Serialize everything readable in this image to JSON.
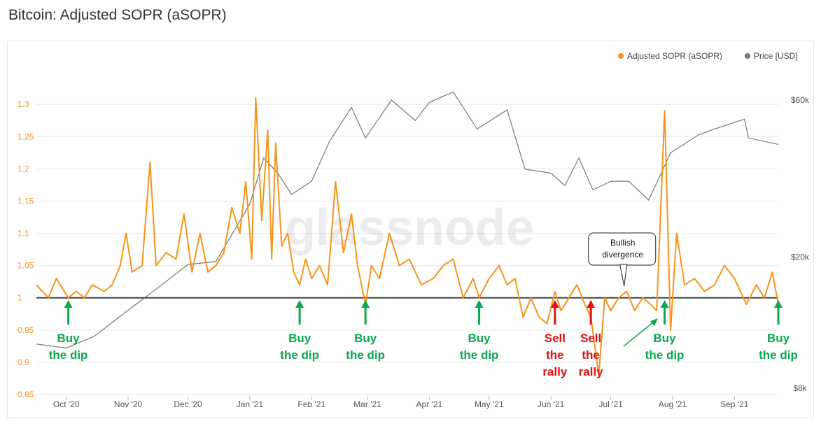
{
  "page_title": "Bitcoin: Adjusted SOPR (aSOPR)",
  "watermark": "glassnode",
  "colors": {
    "sopr": "#f7931a",
    "price": "#777777",
    "baseline": "#444444",
    "buy": "#0aa84f",
    "sell": "#e01010"
  },
  "chart_data": {
    "type": "line",
    "title": "Bitcoin: Adjusted SOPR (aSOPR)",
    "x_ticks": [
      "Oct '20",
      "Nov '20",
      "Dec '20",
      "Jan '21",
      "Feb '21",
      "Mar '21",
      "Apr '21",
      "May '21",
      "Jun '21",
      "Jul '21",
      "Aug '21",
      "Sep '21"
    ],
    "x_range": [
      "2020-09-16",
      "2021-09-23"
    ],
    "y_left": {
      "ticks": [
        "1.3",
        "1.25",
        "1.2",
        "1.15",
        "1.1",
        "1.05",
        "1",
        "0.95",
        "0.9",
        "0.85"
      ],
      "range": [
        0.85,
        1.31
      ]
    },
    "y_right": {
      "ticks": [
        "$60k",
        "$20k",
        "$8k"
      ],
      "scale": "log",
      "range": [
        8000,
        60000
      ]
    },
    "legend": {
      "position": "top-right"
    },
    "baseline": 1,
    "series": [
      {
        "name": "Adjusted SOPR (aSOPR)",
        "axis": "left",
        "points": [
          [
            "2020-09-16",
            1.02
          ],
          [
            "2020-09-22",
            1.0
          ],
          [
            "2020-09-26",
            1.03
          ],
          [
            "2020-10-02",
            1.0
          ],
          [
            "2020-10-06",
            1.01
          ],
          [
            "2020-10-10",
            1.0
          ],
          [
            "2020-10-14",
            1.02
          ],
          [
            "2020-10-20",
            1.01
          ],
          [
            "2020-10-24",
            1.02
          ],
          [
            "2020-10-28",
            1.05
          ],
          [
            "2020-10-31",
            1.1
          ],
          [
            "2020-11-03",
            1.04
          ],
          [
            "2020-11-08",
            1.05
          ],
          [
            "2020-11-12",
            1.21
          ],
          [
            "2020-11-15",
            1.05
          ],
          [
            "2020-11-20",
            1.07
          ],
          [
            "2020-11-25",
            1.06
          ],
          [
            "2020-11-29",
            1.13
          ],
          [
            "2020-12-03",
            1.04
          ],
          [
            "2020-12-07",
            1.1
          ],
          [
            "2020-12-11",
            1.04
          ],
          [
            "2020-12-15",
            1.05
          ],
          [
            "2020-12-19",
            1.07
          ],
          [
            "2020-12-23",
            1.14
          ],
          [
            "2020-12-27",
            1.1
          ],
          [
            "2020-12-30",
            1.18
          ],
          [
            "2021-01-02",
            1.06
          ],
          [
            "2021-01-04",
            1.31
          ],
          [
            "2021-01-07",
            1.12
          ],
          [
            "2021-01-10",
            1.26
          ],
          [
            "2021-01-12",
            1.06
          ],
          [
            "2021-01-14",
            1.24
          ],
          [
            "2021-01-17",
            1.08
          ],
          [
            "2021-01-20",
            1.1
          ],
          [
            "2021-01-23",
            1.04
          ],
          [
            "2021-01-26",
            1.02
          ],
          [
            "2021-01-29",
            1.06
          ],
          [
            "2021-02-01",
            1.03
          ],
          [
            "2021-02-05",
            1.05
          ],
          [
            "2021-02-09",
            1.02
          ],
          [
            "2021-02-13",
            1.18
          ],
          [
            "2021-02-17",
            1.07
          ],
          [
            "2021-02-21",
            1.13
          ],
          [
            "2021-02-24",
            1.05
          ],
          [
            "2021-02-28",
            0.99
          ],
          [
            "2021-03-03",
            1.05
          ],
          [
            "2021-03-07",
            1.03
          ],
          [
            "2021-03-12",
            1.1
          ],
          [
            "2021-03-17",
            1.05
          ],
          [
            "2021-03-22",
            1.06
          ],
          [
            "2021-03-28",
            1.02
          ],
          [
            "2021-04-03",
            1.03
          ],
          [
            "2021-04-08",
            1.05
          ],
          [
            "2021-04-13",
            1.06
          ],
          [
            "2021-04-18",
            1.0
          ],
          [
            "2021-04-23",
            1.03
          ],
          [
            "2021-04-26",
            1.0
          ],
          [
            "2021-05-01",
            1.03
          ],
          [
            "2021-05-06",
            1.05
          ],
          [
            "2021-05-10",
            1.02
          ],
          [
            "2021-05-14",
            1.03
          ],
          [
            "2021-05-18",
            0.97
          ],
          [
            "2021-05-22",
            1.0
          ],
          [
            "2021-05-26",
            0.97
          ],
          [
            "2021-05-30",
            0.96
          ],
          [
            "2021-06-03",
            1.01
          ],
          [
            "2021-06-06",
            0.98
          ],
          [
            "2021-06-10",
            1.0
          ],
          [
            "2021-06-14",
            1.02
          ],
          [
            "2021-06-18",
            0.99
          ],
          [
            "2021-06-21",
            0.97
          ],
          [
            "2021-06-25",
            0.88
          ],
          [
            "2021-06-28",
            1.0
          ],
          [
            "2021-07-01",
            0.98
          ],
          [
            "2021-07-05",
            1.0
          ],
          [
            "2021-07-09",
            1.01
          ],
          [
            "2021-07-13",
            0.98
          ],
          [
            "2021-07-17",
            1.0
          ],
          [
            "2021-07-21",
            0.99
          ],
          [
            "2021-07-24",
            0.98
          ],
          [
            "2021-07-28",
            1.29
          ],
          [
            "2021-07-31",
            0.95
          ],
          [
            "2021-08-03",
            1.1
          ],
          [
            "2021-08-07",
            1.02
          ],
          [
            "2021-08-12",
            1.03
          ],
          [
            "2021-08-17",
            1.01
          ],
          [
            "2021-08-22",
            1.02
          ],
          [
            "2021-08-27",
            1.05
          ],
          [
            "2021-09-01",
            1.03
          ],
          [
            "2021-09-07",
            0.99
          ],
          [
            "2021-09-12",
            1.02
          ],
          [
            "2021-09-16",
            1.0
          ],
          [
            "2021-09-20",
            1.04
          ],
          [
            "2021-09-23",
            0.99
          ]
        ]
      },
      {
        "name": "Price [USD]",
        "axis": "right",
        "points": [
          [
            "2020-09-16",
            10900
          ],
          [
            "2020-10-01",
            10600
          ],
          [
            "2020-10-15",
            11500
          ],
          [
            "2020-11-01",
            13800
          ],
          [
            "2020-11-15",
            16000
          ],
          [
            "2020-12-01",
            19000
          ],
          [
            "2020-12-15",
            19400
          ],
          [
            "2021-01-01",
            29000
          ],
          [
            "2021-01-08",
            40000
          ],
          [
            "2021-01-15",
            36000
          ],
          [
            "2021-01-22",
            31000
          ],
          [
            "2021-02-01",
            34000
          ],
          [
            "2021-02-10",
            45000
          ],
          [
            "2021-02-21",
            57000
          ],
          [
            "2021-02-28",
            46000
          ],
          [
            "2021-03-13",
            60000
          ],
          [
            "2021-03-25",
            52000
          ],
          [
            "2021-04-01",
            59000
          ],
          [
            "2021-04-13",
            63500
          ],
          [
            "2021-04-25",
            49000
          ],
          [
            "2021-05-10",
            56000
          ],
          [
            "2021-05-19",
            37000
          ],
          [
            "2021-06-01",
            36000
          ],
          [
            "2021-06-08",
            33000
          ],
          [
            "2021-06-15",
            40000
          ],
          [
            "2021-06-22",
            32000
          ],
          [
            "2021-07-01",
            34000
          ],
          [
            "2021-07-10",
            34000
          ],
          [
            "2021-07-20",
            29800
          ],
          [
            "2021-07-31",
            41500
          ],
          [
            "2021-08-14",
            47000
          ],
          [
            "2021-08-22",
            49000
          ],
          [
            "2021-09-06",
            52500
          ],
          [
            "2021-09-08",
            46000
          ],
          [
            "2021-09-23",
            44000
          ]
        ]
      }
    ],
    "annotations": [
      {
        "lines": [
          "Buy",
          "the dip"
        ],
        "date": "2020-10-02",
        "kind": "buy"
      },
      {
        "lines": [
          "Buy",
          "the dip"
        ],
        "date": "2021-01-26",
        "kind": "buy"
      },
      {
        "lines": [
          "Buy",
          "the dip"
        ],
        "date": "2021-02-28",
        "kind": "buy"
      },
      {
        "lines": [
          "Buy",
          "the dip"
        ],
        "date": "2021-04-26",
        "kind": "buy"
      },
      {
        "lines": [
          "Sell",
          "the",
          "rally"
        ],
        "date": "2021-06-03",
        "kind": "sell"
      },
      {
        "lines": [
          "Sell",
          "the",
          "rally"
        ],
        "date": "2021-06-21",
        "kind": "sell"
      },
      {
        "lines": [
          "Buy",
          "the dip"
        ],
        "date": "2021-07-28",
        "kind": "buy"
      },
      {
        "lines": [
          "Buy",
          "the dip"
        ],
        "date": "2021-09-23",
        "kind": "buy"
      }
    ],
    "callout": {
      "lines": [
        "Bullish",
        "divergence"
      ],
      "date": "2021-07-07"
    }
  }
}
